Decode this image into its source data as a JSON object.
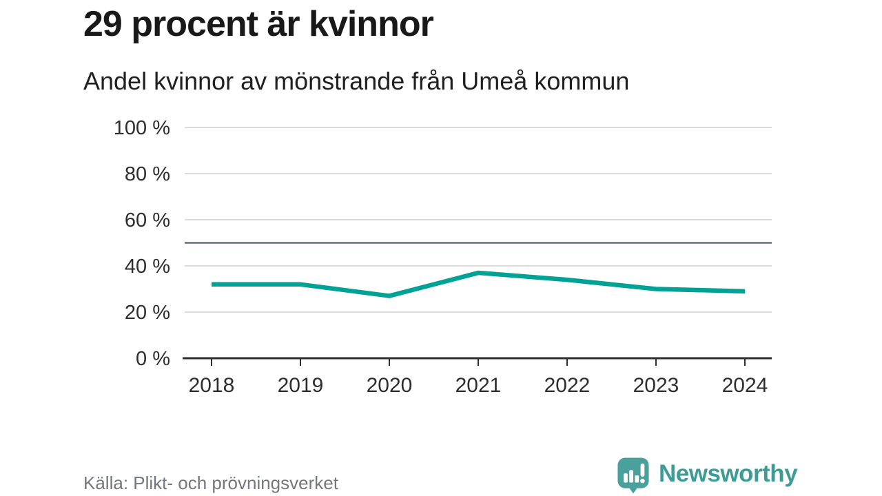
{
  "header": {
    "title": "29 procent är kvinnor",
    "subtitle": "Andel kvinnor av mönstrande från Umeå kommun"
  },
  "footer": {
    "source": "Källa: Plikt- och prövningsverket",
    "brand": "Newsworthy"
  },
  "colors": {
    "line": "#00a295",
    "grid": "#dcdcdc",
    "reference": "#666b78",
    "axis": "#2e2e2e",
    "tick_text": "#2d2d2d",
    "logo_bubble": "#4aa19c",
    "logo_text": "#3f9b95"
  },
  "chart_data": {
    "type": "line",
    "title": "29 procent är kvinnor",
    "subtitle": "Andel kvinnor av mönstrande från Umeå kommun",
    "categories": [
      "2018",
      "2019",
      "2020",
      "2021",
      "2022",
      "2023",
      "2024"
    ],
    "series": [
      {
        "name": "Andel kvinnor av mönstrande",
        "values": [
          32,
          32,
          27,
          37,
          34,
          30,
          29
        ]
      }
    ],
    "unit": "%",
    "ylim": [
      0,
      100
    ],
    "yticks": [
      0,
      20,
      40,
      60,
      80,
      100
    ],
    "ytick_labels": [
      "0 %",
      "20 %",
      "40 %",
      "60 %",
      "80 %",
      "100 %"
    ],
    "reference_line": 50,
    "grid": true,
    "legend": "none",
    "source": "Källa: Plikt- och prövningsverket"
  }
}
